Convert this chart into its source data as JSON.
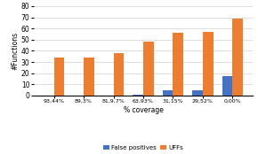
{
  "categories": [
    "93,44%",
    "89,3%",
    "81,9,7%",
    "63,93%",
    "31,15%",
    "29,52%",
    "0,00%"
  ],
  "false_positives": [
    0,
    0,
    0,
    1,
    5,
    5,
    17
  ],
  "uffs": [
    34,
    34,
    38,
    48,
    56,
    57,
    69
  ],
  "fp_color": "#4472c4",
  "uff_color": "#ed7d31",
  "xlabel": "% coverage",
  "ylabel": "#Functions",
  "ylim": [
    0,
    80
  ],
  "yticks": [
    0,
    10,
    20,
    30,
    40,
    50,
    60,
    70,
    80
  ],
  "legend_labels": [
    "False positives",
    "UFFs"
  ],
  "bar_width": 0.35,
  "background_color": "#ffffff",
  "grid_color": "#d9d9d9"
}
